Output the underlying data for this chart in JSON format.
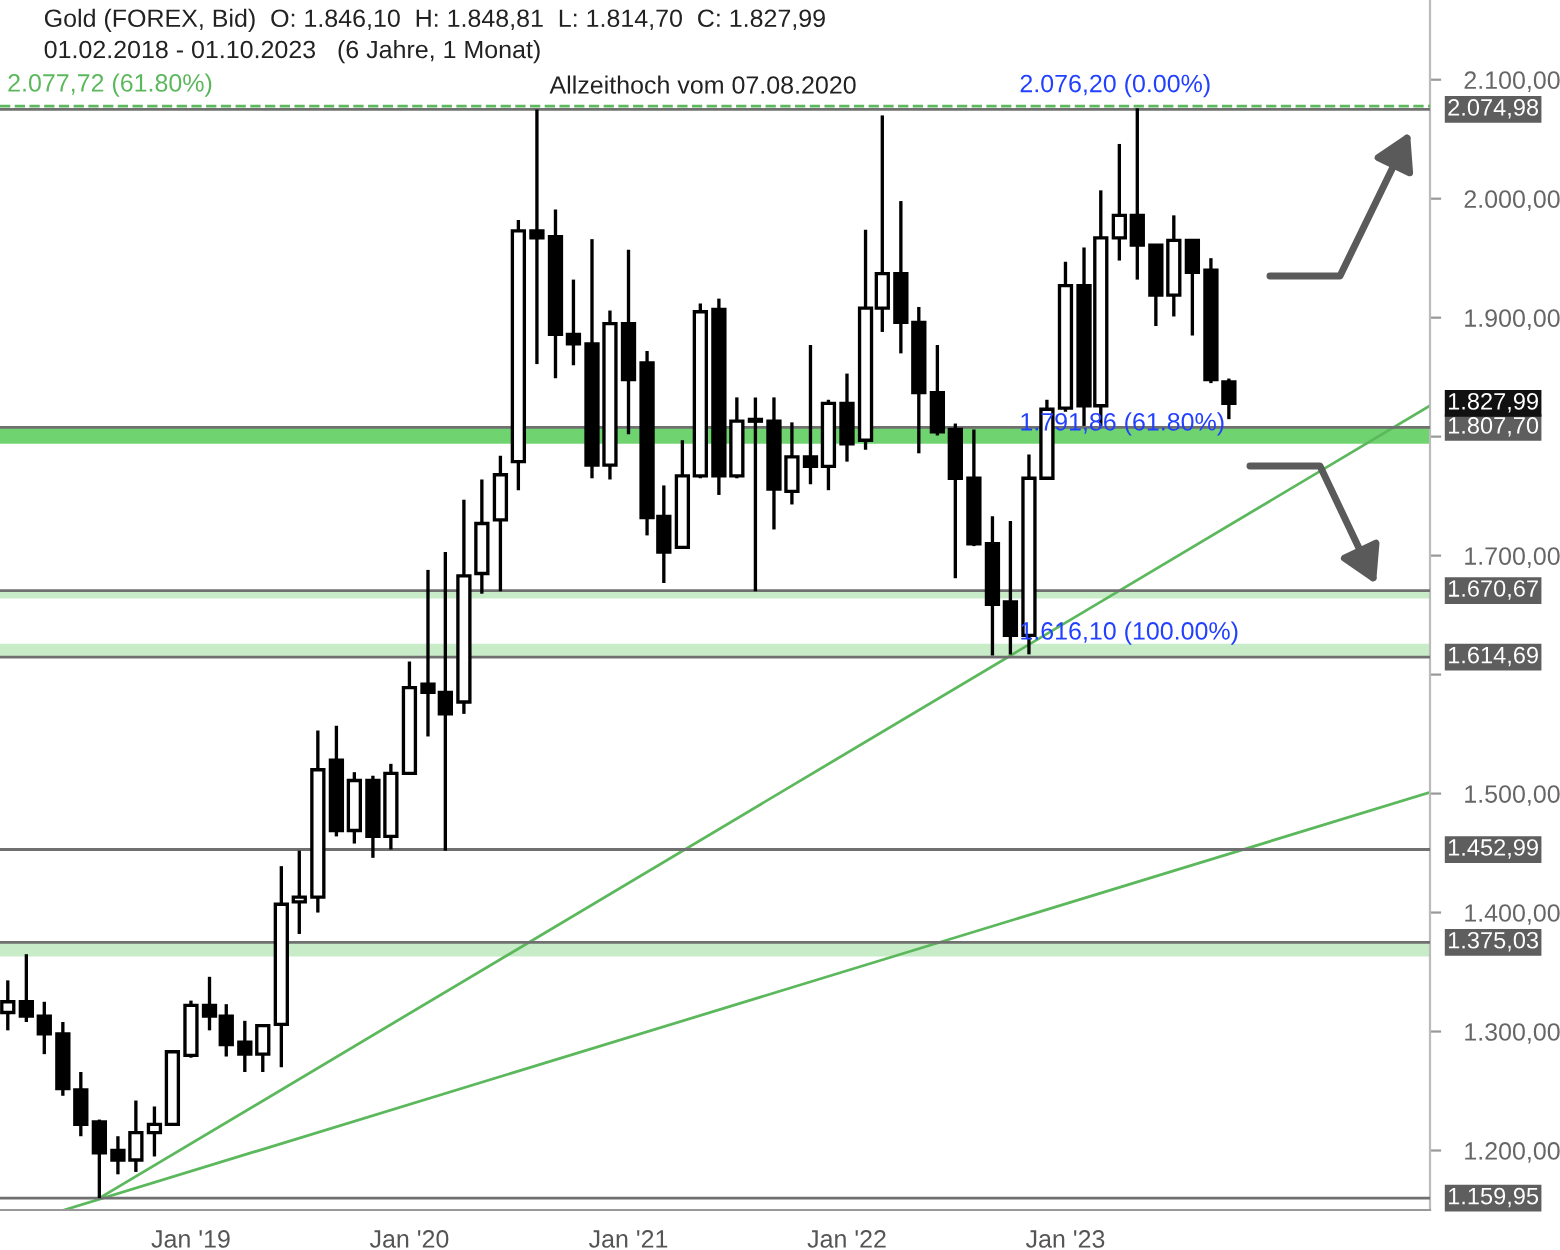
{
  "chart_data": {
    "type": "candlestick",
    "title": "Gold (FOREX, Bid)  O: 1.846,10  H: 1.848,81  L: 1.814,70  C: 1.827,99",
    "subtitle": "01.02.2018 - 01.10.2023   (6 Jahre, 1 Monat)",
    "x": [
      "2018-03",
      "2018-04",
      "2018-05",
      "2018-06",
      "2018-07",
      "2018-08",
      "2018-09",
      "2018-10",
      "2018-11",
      "2018-12",
      "2019-01",
      "2019-02",
      "2019-03",
      "2019-04",
      "2019-05",
      "2019-06",
      "2019-07",
      "2019-08",
      "2019-09",
      "2019-10",
      "2019-11",
      "2019-12",
      "2020-01",
      "2020-02",
      "2020-03",
      "2020-04",
      "2020-05",
      "2020-06",
      "2020-07",
      "2020-08",
      "2020-09",
      "2020-10",
      "2020-11",
      "2020-12",
      "2021-01",
      "2021-02",
      "2021-03",
      "2021-04",
      "2021-05",
      "2021-06",
      "2021-07",
      "2021-08",
      "2021-09",
      "2021-10",
      "2021-11",
      "2021-12",
      "2022-01",
      "2022-02",
      "2022-03",
      "2022-04",
      "2022-05",
      "2022-06",
      "2022-07",
      "2022-08",
      "2022-09",
      "2022-10",
      "2022-11",
      "2022-12",
      "2023-01",
      "2023-02",
      "2023-03",
      "2023-04",
      "2023-05",
      "2023-06",
      "2023-07",
      "2023-08",
      "2023-09",
      "2023-10"
    ],
    "ohlc": [
      [
        1316,
        1343,
        1301,
        1325
      ],
      [
        1325,
        1365,
        1308,
        1313
      ],
      [
        1313,
        1325,
        1281,
        1298
      ],
      [
        1298,
        1308,
        1246,
        1252
      ],
      [
        1251,
        1266,
        1212,
        1222
      ],
      [
        1224,
        1226,
        1160,
        1198
      ],
      [
        1200,
        1212,
        1180,
        1192
      ],
      [
        1192,
        1242,
        1182,
        1215
      ],
      [
        1215,
        1237,
        1195,
        1222
      ],
      [
        1222,
        1284,
        1221,
        1283
      ],
      [
        1280,
        1326,
        1278,
        1322
      ],
      [
        1322,
        1346,
        1301,
        1313
      ],
      [
        1313,
        1323,
        1279,
        1289
      ],
      [
        1291,
        1309,
        1266,
        1281
      ],
      [
        1281,
        1306,
        1266,
        1305
      ],
      [
        1306,
        1439,
        1270,
        1407
      ],
      [
        1409,
        1452,
        1382,
        1413
      ],
      [
        1413,
        1553,
        1400,
        1520
      ],
      [
        1528,
        1557,
        1464,
        1469
      ],
      [
        1469,
        1518,
        1458,
        1511
      ],
      [
        1511,
        1515,
        1446,
        1464
      ],
      [
        1464,
        1525,
        1453,
        1517
      ],
      [
        1517,
        1611,
        1517,
        1589
      ],
      [
        1592,
        1688,
        1548,
        1585
      ],
      [
        1585,
        1703,
        1452,
        1567
      ],
      [
        1577,
        1747,
        1567,
        1683
      ],
      [
        1685,
        1764,
        1668,
        1727
      ],
      [
        1730,
        1784,
        1670,
        1768
      ],
      [
        1779,
        1982,
        1755,
        1973
      ],
      [
        1973,
        2075,
        1861,
        1967
      ],
      [
        1968,
        1991,
        1849,
        1886
      ],
      [
        1886,
        1932,
        1860,
        1878
      ],
      [
        1878,
        1966,
        1765,
        1776
      ],
      [
        1776,
        1906,
        1764,
        1895
      ],
      [
        1895,
        1957,
        1802,
        1848
      ],
      [
        1862,
        1872,
        1717,
        1732
      ],
      [
        1733,
        1759,
        1677,
        1703
      ],
      [
        1707,
        1797,
        1706,
        1767
      ],
      [
        1767,
        1912,
        1765,
        1905
      ],
      [
        1907,
        1916,
        1751,
        1767
      ],
      [
        1767,
        1833,
        1765,
        1813
      ],
      [
        1813,
        1833,
        1670,
        1814
      ],
      [
        1813,
        1833,
        1722,
        1756
      ],
      [
        1754,
        1812,
        1743,
        1783
      ],
      [
        1783,
        1877,
        1760,
        1775
      ],
      [
        1775,
        1831,
        1755,
        1828
      ],
      [
        1828,
        1853,
        1779,
        1794
      ],
      [
        1797,
        1974,
        1789,
        1908
      ],
      [
        1908,
        2070,
        1888,
        1937
      ],
      [
        1937,
        1998,
        1870,
        1896
      ],
      [
        1896,
        1909,
        1786,
        1837
      ],
      [
        1837,
        1877,
        1801,
        1804
      ],
      [
        1806,
        1811,
        1681,
        1765
      ],
      [
        1765,
        1806,
        1708,
        1710
      ],
      [
        1710,
        1733,
        1616,
        1659
      ],
      [
        1661,
        1729,
        1617,
        1633
      ],
      [
        1633,
        1785,
        1617,
        1765
      ],
      [
        1765,
        1831,
        1765,
        1823
      ],
      [
        1824,
        1947,
        1821,
        1927
      ],
      [
        1927,
        1959,
        1809,
        1826
      ],
      [
        1826,
        2007,
        1809,
        1967
      ],
      [
        1967,
        2046,
        1948,
        1986
      ],
      [
        1986,
        2076,
        1932,
        1961
      ],
      [
        1961,
        1961,
        1893,
        1919
      ],
      [
        1919,
        1986,
        1901,
        1965
      ],
      [
        1965,
        1965,
        1885,
        1938
      ],
      [
        1940,
        1950,
        1845,
        1848
      ],
      [
        1846.1,
        1848.81,
        1814.7,
        1827.99
      ]
    ],
    "series": [
      {
        "type": "line",
        "color": "#5cb85c",
        "x": [
          "2018-08-01",
          "2024-09-01"
        ],
        "values": [
          1160,
          1826
        ]
      },
      {
        "type": "line",
        "color": "#5cb85c",
        "x": [
          "2018-06-03",
          "2024-09-01"
        ],
        "values": [
          1150,
          1501
        ]
      }
    ],
    "xlim": [
      "2018-02-16",
      "2024-09-01"
    ],
    "xticks": [
      {
        "value": "2019-01-01",
        "label": "Jan '19"
      },
      {
        "value": "2020-01-01",
        "label": "Jan '20"
      },
      {
        "value": "2021-01-01",
        "label": "Jan '21"
      },
      {
        "value": "2022-01-01",
        "label": "Jan '22"
      },
      {
        "value": "2023-01-01",
        "label": "Jan '23"
      }
    ],
    "ylim": [
      1150,
      2167
    ],
    "yticks": [
      {
        "value": 1200,
        "label": "1.200,00"
      },
      {
        "value": 1300,
        "label": "1.300,00"
      },
      {
        "value": 1400,
        "label": "1.400,00"
      },
      {
        "value": 1500,
        "label": "1.500,00"
      },
      {
        "value": 1600,
        "label": null
      },
      {
        "value": 1700,
        "label": "1.700,00"
      },
      {
        "value": 1800,
        "label": null
      },
      {
        "value": 1900,
        "label": "1.900,00"
      },
      {
        "value": 2000,
        "label": "2.000,00"
      },
      {
        "value": 2100,
        "label": "2.100,00"
      }
    ],
    "bands": [
      {
        "axis": "y",
        "from": 1794,
        "to": 1808,
        "color": "#6fd46f"
      },
      {
        "axis": "y",
        "from": 1614,
        "to": 1626,
        "color": "#c8ecc8"
      },
      {
        "axis": "y",
        "from": 1664,
        "to": 1670,
        "color": "#c8ecc8"
      },
      {
        "axis": "y",
        "from": 1363,
        "to": 1375,
        "color": "#c8ecc8"
      }
    ],
    "ref_lines": [
      {
        "axis": "y",
        "value": 2077.72,
        "label": "2.077,72 (61.80%)",
        "color": "#5cb85c",
        "line_style": "dashed"
      },
      {
        "axis": "y",
        "value": 2074.98,
        "label": "2.074,98",
        "color": "#707070",
        "line_style": "solid"
      },
      {
        "axis": "y",
        "value": 1807.7,
        "label": "1.807,70",
        "color": "#707070",
        "line_style": "solid"
      },
      {
        "axis": "y",
        "value": 1670.67,
        "label": "1.670,67",
        "color": "#707070",
        "line_style": "solid"
      },
      {
        "axis": "y",
        "value": 1614.69,
        "label": "1.614,69",
        "color": "#707070",
        "line_style": "solid"
      },
      {
        "axis": "y",
        "value": 1452.99,
        "label": "1.452,99",
        "color": "#707070",
        "line_style": "solid"
      },
      {
        "axis": "y",
        "value": 1375.03,
        "label": "1.375,03",
        "color": "#707070",
        "line_style": "solid"
      },
      {
        "axis": "y",
        "value": 1159.95,
        "label": "1.159,95",
        "color": "#707070",
        "line_style": "solid"
      }
    ],
    "annotations": [
      "1.827,99",
      {
        "text": "Allzeithoch vom 07.08.2020",
        "x": "2020-08-07",
        "y": 2074.98
      },
      {
        "text": "2.076,20 (0.00%)",
        "x": "2022-10-01",
        "y": 2076.2
      },
      {
        "text": "1.791,86 (61.80%)",
        "x": "2022-10-01",
        "y": 1791.86
      },
      {
        "text": "1.616,10 (100.00%)",
        "x": "2022-10-01",
        "y": 1616.1
      }
    ]
  }
}
